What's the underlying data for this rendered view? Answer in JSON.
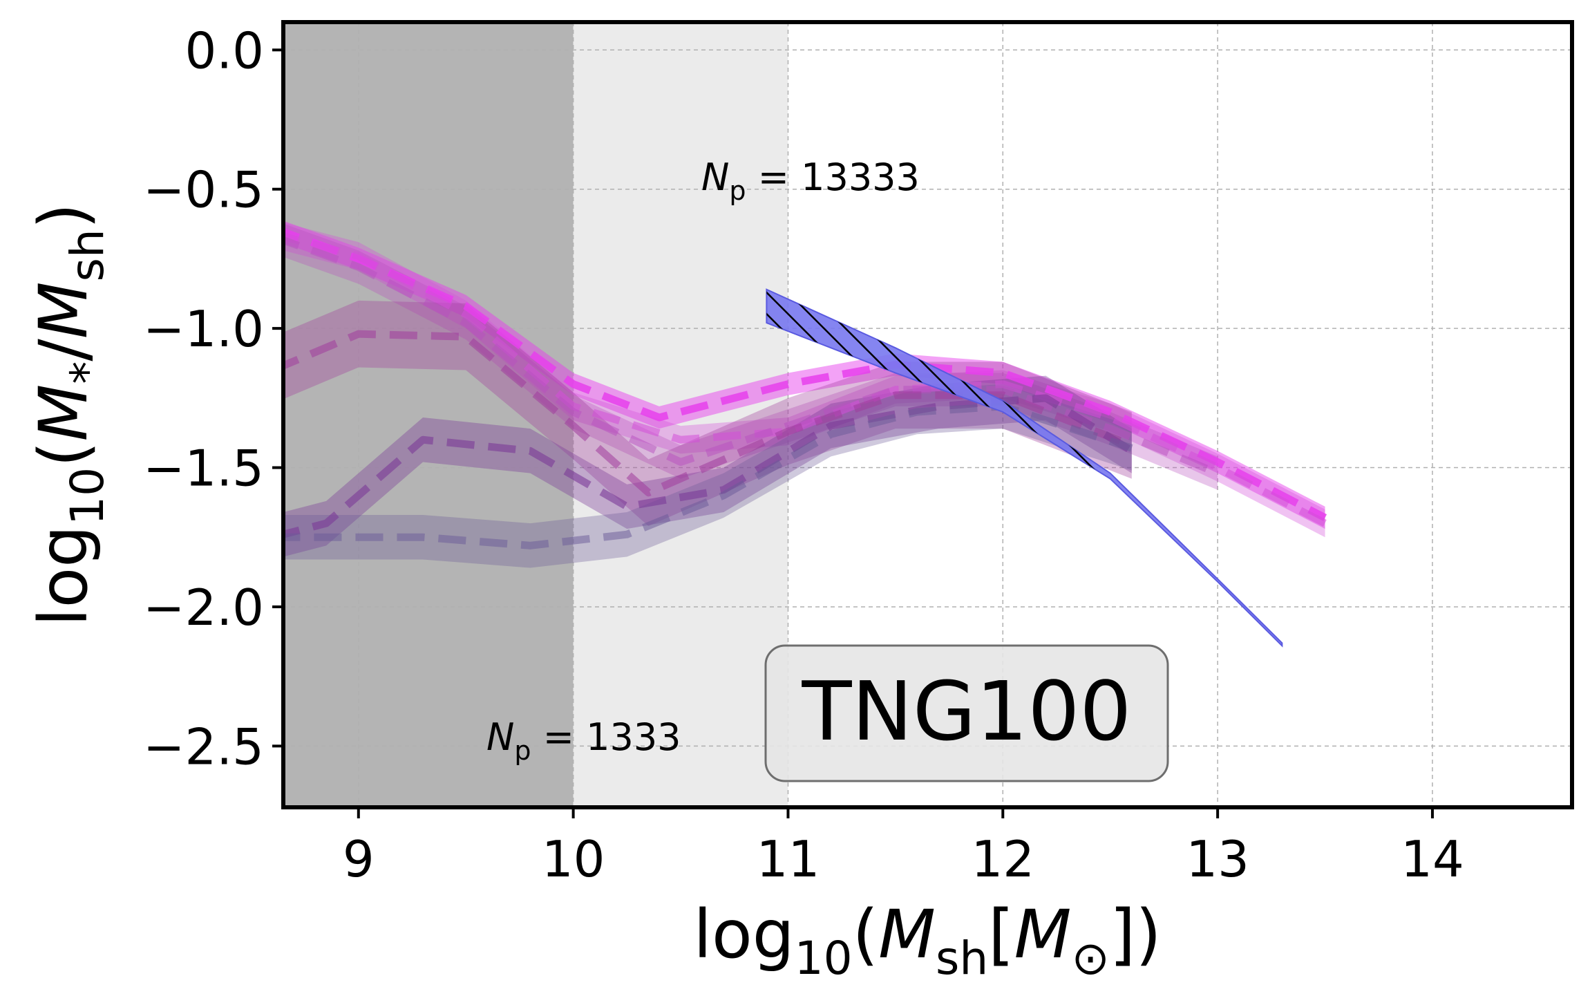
{
  "chart_data": {
    "type": "line",
    "title": "",
    "xlabel": {
      "prefix": "log",
      "sub": "10",
      "open": "(",
      "sym": "M",
      "symsub": "sh",
      "bracket": "[",
      "sun": "M",
      "sunsub": "⊙",
      "close": "])"
    },
    "ylabel": {
      "prefix": "log",
      "sub": "10",
      "open": "(",
      "num": "M",
      "numsub": "*",
      "slash": "/",
      "den": "M",
      "densub": "sh",
      "close": ")"
    },
    "xlim": [
      8.65,
      14.65
    ],
    "ylim": [
      -2.72,
      0.1
    ],
    "xticks": [
      9,
      10,
      11,
      12,
      13,
      14
    ],
    "xtick_labels": [
      "9",
      "10",
      "11",
      "12",
      "13",
      "14"
    ],
    "yticks": [
      0.0,
      -0.5,
      -1.0,
      -1.5,
      -2.0,
      -2.5
    ],
    "ytick_labels": [
      "0.0",
      "−0.5",
      "−1.0",
      "−1.5",
      "−2.0",
      "−2.5"
    ],
    "grid": true,
    "shaded_regions": [
      {
        "x0": 8.65,
        "x1": 10.0,
        "color": "#b4b4b4"
      },
      {
        "x0": 10.0,
        "x1": 11.0,
        "color": "#ebebeb"
      }
    ],
    "annotations": [
      {
        "pre": "N",
        "sub": "p",
        "post": " = 13333",
        "x": 10.6,
        "y": -0.5
      },
      {
        "pre": "N",
        "sub": "p",
        "post": " = 1333",
        "x": 9.6,
        "y": -2.5
      }
    ],
    "box_label": "TNG100",
    "series": [
      {
        "name": "s1",
        "color": "#e63fec",
        "x": [
          8.6,
          9.0,
          9.5,
          10.0,
          10.4,
          11.0,
          11.5,
          12.0,
          12.5,
          13.0,
          13.5
        ],
        "y": [
          -0.64,
          -0.75,
          -0.92,
          -1.2,
          -1.32,
          -1.2,
          -1.13,
          -1.16,
          -1.3,
          -1.48,
          -1.68
        ],
        "band": 0.04,
        "alpha": 0.85
      },
      {
        "name": "s2",
        "color": "#d44fd9",
        "x": [
          8.6,
          9.0,
          9.5,
          10.0,
          10.5,
          11.0,
          11.5,
          12.0,
          12.5,
          13.0,
          13.5
        ],
        "y": [
          -0.66,
          -0.74,
          -0.95,
          -1.28,
          -1.4,
          -1.37,
          -1.22,
          -1.2,
          -1.32,
          -1.5,
          -1.7
        ],
        "band": 0.05,
        "alpha": 0.55
      },
      {
        "name": "s3",
        "color": "#b84fc0",
        "x": [
          8.6,
          9.0,
          9.5,
          10.0,
          10.5,
          11.0,
          11.5,
          12.0,
          12.5,
          13.0
        ],
        "y": [
          -0.67,
          -0.78,
          -0.98,
          -1.3,
          -1.48,
          -1.35,
          -1.22,
          -1.22,
          -1.36,
          -1.52
        ],
        "band": 0.06,
        "alpha": 0.5
      },
      {
        "name": "s4",
        "color": "#a03d9c",
        "x": [
          8.6,
          9.0,
          9.5,
          10.0,
          10.35,
          11.0,
          11.5,
          12.0,
          12.6
        ],
        "y": [
          -1.15,
          -1.02,
          -1.03,
          -1.35,
          -1.59,
          -1.37,
          -1.24,
          -1.24,
          -1.42
        ],
        "band": 0.12,
        "alpha": 0.55
      },
      {
        "name": "s5",
        "color": "#7b3a97",
        "x": [
          8.6,
          8.85,
          9.3,
          9.8,
          10.25,
          10.7,
          11.2,
          11.7,
          12.2,
          12.6
        ],
        "y": [
          -1.75,
          -1.7,
          -1.4,
          -1.44,
          -1.64,
          -1.58,
          -1.35,
          -1.28,
          -1.25,
          -1.44
        ],
        "band": 0.08,
        "alpha": 0.6
      },
      {
        "name": "s6",
        "color": "#6a5a98",
        "x": [
          8.6,
          9.3,
          9.8,
          10.25,
          10.7,
          11.2,
          11.6,
          12.0,
          12.6
        ],
        "y": [
          -1.75,
          -1.75,
          -1.78,
          -1.74,
          -1.6,
          -1.38,
          -1.3,
          -1.28,
          -1.43
        ],
        "band": 0.08,
        "alpha": 0.5
      }
    ],
    "reference_band": {
      "name": "hatched-relation",
      "color": "#7878f0",
      "x": [
        10.9,
        11.5,
        12.0,
        12.5,
        13.0,
        13.3
      ],
      "upper": [
        -0.86,
        -1.07,
        -1.26,
        -1.52,
        -1.9,
        -2.13
      ],
      "lower": [
        -0.98,
        -1.16,
        -1.3,
        -1.54,
        -1.91,
        -2.14
      ]
    }
  }
}
